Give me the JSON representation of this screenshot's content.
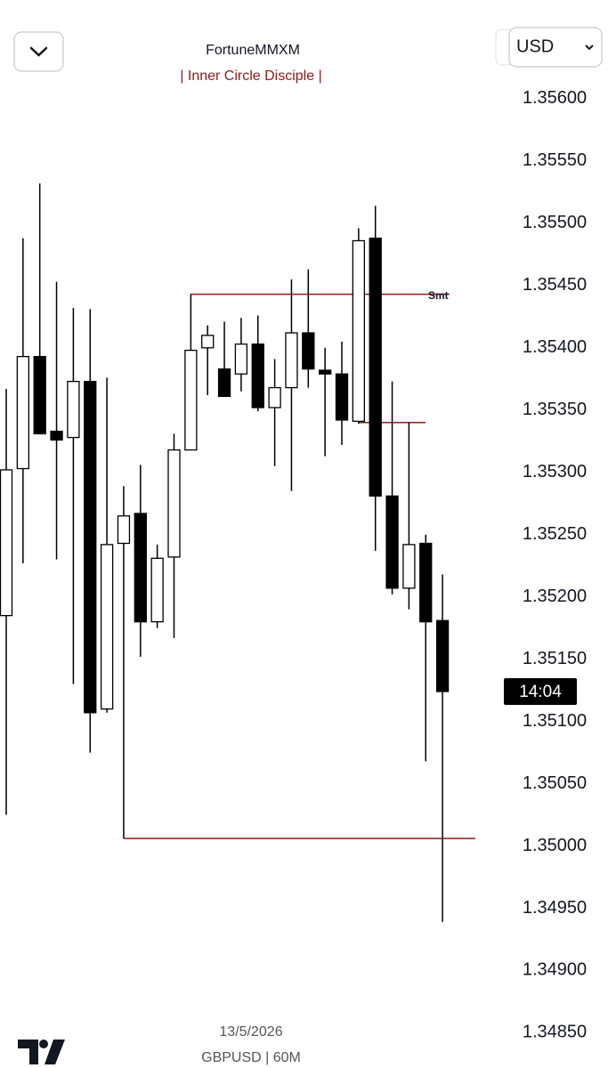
{
  "chart_data": {
    "type": "candlestick",
    "title": "FortuneMMXM",
    "subtitle": "| Inner Circle Disciple |",
    "open": [
      1.35185,
      1.35303,
      1.35393,
      1.35333,
      1.35328,
      1.35373,
      1.3511,
      1.35243,
      1.35267,
      1.3518,
      1.35232,
      1.35318,
      1.354,
      1.35383,
      1.35379,
      1.35403,
      1.35352,
      1.35368,
      1.35412,
      1.35382,
      1.35379,
      1.35341,
      1.35488,
      1.35281,
      1.35207,
      1.35243,
      1.35181
    ],
    "high": [
      1.35367,
      1.35488,
      1.35532,
      1.35453,
      1.35432,
      1.35431,
      1.35376,
      1.35289,
      1.35306,
      1.35242,
      1.35331,
      1.35443,
      1.35418,
      1.35421,
      1.35424,
      1.35426,
      1.35391,
      1.35455,
      1.35463,
      1.354,
      1.35405,
      1.35496,
      1.35514,
      1.35373,
      1.3534,
      1.3525,
      1.35218
    ],
    "low": [
      1.35025,
      1.35227,
      1.35331,
      1.3523,
      1.3513,
      1.35075,
      1.35107,
      1.35006,
      1.35152,
      1.35175,
      1.35167,
      1.35318,
      1.35362,
      1.35361,
      1.35365,
      1.35349,
      1.35305,
      1.35285,
      1.35368,
      1.35313,
      1.35322,
      1.35339,
      1.35237,
      1.35202,
      1.3519,
      1.35068,
      1.34939
    ],
    "close": [
      1.35302,
      1.35393,
      1.35331,
      1.35326,
      1.35373,
      1.35107,
      1.35242,
      1.35265,
      1.3518,
      1.35231,
      1.35318,
      1.35398,
      1.3541,
      1.35361,
      1.35403,
      1.35352,
      1.35368,
      1.35412,
      1.35383,
      1.35379,
      1.35342,
      1.35486,
      1.35281,
      1.35207,
      1.35242,
      1.3518,
      1.35124
    ],
    "up_color": "#ffffff",
    "down_color": "#000000",
    "levels": [
      {
        "value": 1.35443,
        "label": "Smt"
      },
      {
        "value": 1.3534
      },
      {
        "value": 1.35006
      }
    ],
    "level_color": "#8b1a1a",
    "ylim": [
      1.34836,
      1.35665
    ],
    "yticks": [
      {
        "value": 1.356,
        "label": "1.35600"
      },
      {
        "value": 1.3555,
        "label": "1.35550"
      },
      {
        "value": 1.355,
        "label": "1.35500"
      },
      {
        "value": 1.3545,
        "label": "1.35450"
      },
      {
        "value": 1.354,
        "label": "1.35400"
      },
      {
        "value": 1.3535,
        "label": "1.35350"
      },
      {
        "value": 1.353,
        "label": "1.35300"
      },
      {
        "value": 1.3525,
        "label": "1.35250"
      },
      {
        "value": 1.352,
        "label": "1.35200"
      },
      {
        "value": 1.3515,
        "label": "1.35150"
      },
      {
        "value": 1.351,
        "label": "1.35100"
      },
      {
        "value": 1.3505,
        "label": "1.35050"
      },
      {
        "value": 1.35,
        "label": "1.35000"
      },
      {
        "value": 1.3495,
        "label": "1.34950"
      },
      {
        "value": 1.349,
        "label": "1.34900"
      },
      {
        "value": 1.3485,
        "label": "1.34850"
      }
    ],
    "countdown": "14:04",
    "grid": false
  },
  "ui": {
    "currency": "USD",
    "date": "13/5/2026",
    "symbol": "GBPUSD | 60M"
  }
}
